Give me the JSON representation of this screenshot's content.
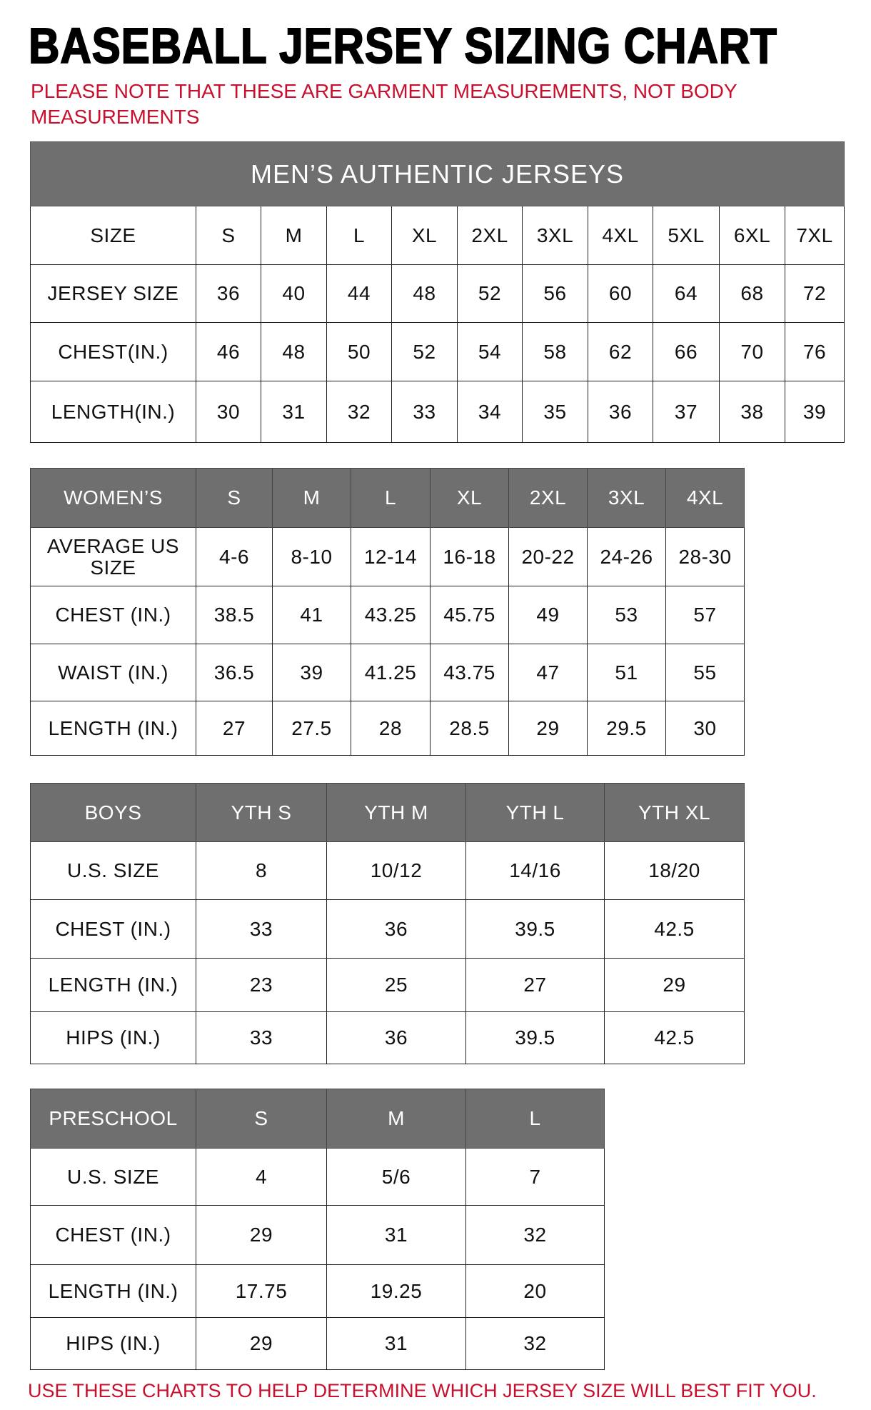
{
  "title": "BASEBALL JERSEY SIZING CHART",
  "note": "PLEASE NOTE THAT THESE ARE GARMENT MEASUREMENTS, NOT BODY MEASUREMENTS",
  "footer": "USE THESE CHARTS TO HELP DETERMINE WHICH JERSEY SIZE WILL BEST FIT YOU.",
  "colors": {
    "header_bg": "#6f6f6f",
    "accent_red": "#c8102e"
  },
  "mens": {
    "caption": "MEN’S AUTHENTIC JERSEYS",
    "rows": [
      [
        "SIZE",
        "S",
        "M",
        "L",
        "XL",
        "2XL",
        "3XL",
        "4XL",
        "5XL",
        "6XL",
        "7XL"
      ],
      [
        "JERSEY SIZE",
        "36",
        "40",
        "44",
        "48",
        "52",
        "56",
        "60",
        "64",
        "68",
        "72"
      ],
      [
        "CHEST(IN.)",
        "46",
        "48",
        "50",
        "52",
        "54",
        "58",
        "62",
        "66",
        "70",
        "76"
      ],
      [
        "LENGTH(IN.)",
        "30",
        "31",
        "32",
        "33",
        "34",
        "35",
        "36",
        "37",
        "38",
        "39"
      ]
    ]
  },
  "womens": {
    "rows": [
      [
        "WOMEN’S",
        "S",
        "M",
        "L",
        "XL",
        "2XL",
        "3XL",
        "4XL"
      ],
      [
        "AVERAGE US SIZE",
        "4-6",
        "8-10",
        "12-14",
        "16-18",
        "20-22",
        "24-26",
        "28-30"
      ],
      [
        "CHEST (IN.)",
        "38.5",
        "41",
        "43.25",
        "45.75",
        "49",
        "53",
        "57"
      ],
      [
        "WAIST (IN.)",
        "36.5",
        "39",
        "41.25",
        "43.75",
        "47",
        "51",
        "55"
      ],
      [
        "LENGTH (IN.)",
        "27",
        "27.5",
        "28",
        "28.5",
        "29",
        "29.5",
        "30"
      ]
    ]
  },
  "boys": {
    "rows": [
      [
        "BOYS",
        "YTH S",
        "YTH M",
        "YTH L",
        "YTH XL"
      ],
      [
        "U.S. SIZE",
        "8",
        "10/12",
        "14/16",
        "18/20"
      ],
      [
        "CHEST (IN.)",
        "33",
        "36",
        "39.5",
        "42.5"
      ],
      [
        "LENGTH (IN.)",
        "23",
        "25",
        "27",
        "29"
      ],
      [
        "HIPS (IN.)",
        "33",
        "36",
        "39.5",
        "42.5"
      ]
    ]
  },
  "preschool": {
    "rows": [
      [
        "PRESCHOOL",
        "S",
        "M",
        "L"
      ],
      [
        "U.S. SIZE",
        "4",
        "5/6",
        "7"
      ],
      [
        "CHEST (IN.)",
        "29",
        "31",
        "32"
      ],
      [
        "LENGTH (IN.)",
        "17.75",
        "19.25",
        "20"
      ],
      [
        "HIPS (IN.)",
        "29",
        "31",
        "32"
      ]
    ]
  }
}
